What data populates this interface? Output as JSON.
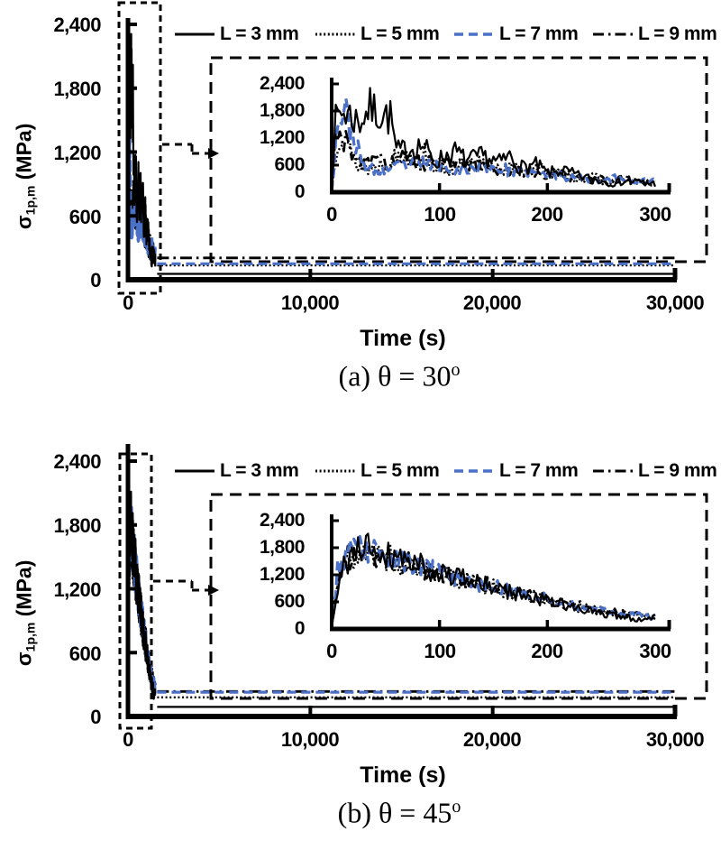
{
  "figure": {
    "background": "#ffffff",
    "text_color": "#000000"
  },
  "colors": {
    "black": "#000000",
    "blue": "#4a70c8"
  },
  "chart_data": [
    {
      "type": "line",
      "caption": "(a) θ = 30°",
      "caption_prefix": "(a) θ = 30",
      "caption_sup": "o",
      "xlabel": "Time (s)",
      "ylabel": "σ1p,m (MPa)",
      "ylabel_parts": {
        "sigma": "σ",
        "sub": "1p,m",
        "rest": " (MPa)"
      },
      "legend_position": "top",
      "main_axis": {
        "xlim": [
          0,
          30000
        ],
        "ylim": [
          0,
          2400
        ],
        "grid": false,
        "xticks": [
          0,
          10000,
          20000,
          30000
        ],
        "xtick_labels": [
          "0",
          "10,000",
          "20,000",
          "30,000"
        ],
        "yticks": [
          2400,
          1800,
          1200,
          600,
          0
        ],
        "ytick_labels": [
          "2,400",
          "1,800",
          "1,200",
          "600",
          "0"
        ]
      },
      "inset_axis": {
        "xlim": [
          0,
          300
        ],
        "ylim": [
          0,
          2400
        ],
        "grid": false,
        "xticks": [
          0,
          100,
          200,
          300
        ],
        "xtick_labels": [
          "0",
          "100",
          "200",
          "300"
        ],
        "yticks": [
          2400,
          1800,
          1200,
          600,
          0
        ],
        "ytick_labels": [
          "2,400",
          "1,800",
          "1,200",
          "600",
          "0"
        ]
      },
      "burst_duration_s": 1500,
      "series": [
        {
          "name": "L = 3 mm",
          "style": "solid",
          "color": "#000000",
          "steady_MPa": 55,
          "seed": 7,
          "noise": 0.45,
          "control_points": [
            [
              0,
              40
            ],
            [
              3,
              1500
            ],
            [
              8,
              1800
            ],
            [
              15,
              1750
            ],
            [
              25,
              1550
            ],
            [
              35,
              1850
            ],
            [
              45,
              1750
            ],
            [
              55,
              1650
            ],
            [
              60,
              900
            ],
            [
              70,
              950
            ],
            [
              85,
              1050
            ],
            [
              95,
              650
            ],
            [
              105,
              800
            ],
            [
              115,
              900
            ],
            [
              125,
              700
            ],
            [
              140,
              800
            ],
            [
              155,
              650
            ],
            [
              165,
              800
            ],
            [
              175,
              550
            ],
            [
              190,
              600
            ],
            [
              200,
              420
            ],
            [
              215,
              480
            ],
            [
              230,
              350
            ],
            [
              245,
              280
            ],
            [
              260,
              200
            ],
            [
              275,
              260
            ],
            [
              290,
              210
            ],
            [
              300,
              190
            ]
          ]
        },
        {
          "name": "L = 5 mm",
          "style": "dotted",
          "color": "#000000",
          "steady_MPa": 135,
          "seed": 13,
          "noise": 0.5,
          "control_points": [
            [
              0,
              30
            ],
            [
              5,
              1200
            ],
            [
              10,
              1500
            ],
            [
              18,
              800
            ],
            [
              28,
              520
            ],
            [
              40,
              560
            ],
            [
              55,
              720
            ],
            [
              70,
              820
            ],
            [
              85,
              880
            ],
            [
              95,
              600
            ],
            [
              110,
              520
            ],
            [
              125,
              580
            ],
            [
              140,
              620
            ],
            [
              155,
              560
            ],
            [
              170,
              480
            ],
            [
              185,
              540
            ],
            [
              200,
              430
            ],
            [
              215,
              380
            ],
            [
              230,
              320
            ],
            [
              245,
              300
            ],
            [
              260,
              270
            ],
            [
              280,
              230
            ],
            [
              300,
              200
            ]
          ]
        },
        {
          "name": "L = 7 mm",
          "style": "dashed",
          "color": "#4a70c8",
          "steady_MPa": 150,
          "seed": 23,
          "noise": 0.4,
          "control_points": [
            [
              0,
              30
            ],
            [
              6,
              1700
            ],
            [
              12,
              1780
            ],
            [
              20,
              1300
            ],
            [
              28,
              600
            ],
            [
              40,
              460
            ],
            [
              55,
              520
            ],
            [
              70,
              600
            ],
            [
              85,
              640
            ],
            [
              100,
              580
            ],
            [
              115,
              480
            ],
            [
              130,
              520
            ],
            [
              145,
              540
            ],
            [
              160,
              500
            ],
            [
              175,
              440
            ],
            [
              190,
              420
            ],
            [
              205,
              390
            ],
            [
              220,
              330
            ],
            [
              235,
              300
            ],
            [
              250,
              290
            ],
            [
              265,
              310
            ],
            [
              280,
              270
            ],
            [
              300,
              240
            ]
          ]
        },
        {
          "name": "L = 9 mm",
          "style": "dashdot",
          "color": "#000000",
          "steady_MPa": 205,
          "seed": 31,
          "noise": 0.45,
          "control_points": [
            [
              0,
              35
            ],
            [
              5,
              1550
            ],
            [
              11,
              1200
            ],
            [
              20,
              750
            ],
            [
              32,
              620
            ],
            [
              45,
              680
            ],
            [
              60,
              720
            ],
            [
              75,
              700
            ],
            [
              90,
              640
            ],
            [
              105,
              580
            ],
            [
              120,
              600
            ],
            [
              135,
              560
            ],
            [
              150,
              520
            ],
            [
              165,
              470
            ],
            [
              180,
              460
            ],
            [
              195,
              420
            ],
            [
              210,
              380
            ],
            [
              225,
              350
            ],
            [
              240,
              300
            ],
            [
              255,
              280
            ],
            [
              270,
              260
            ],
            [
              285,
              240
            ],
            [
              300,
              220
            ]
          ]
        }
      ]
    },
    {
      "type": "line",
      "caption": "(b) θ = 45°",
      "caption_prefix": "(b) θ = 45",
      "caption_sup": "o",
      "xlabel": "Time (s)",
      "ylabel": "σ1p,m (MPa)",
      "ylabel_parts": {
        "sigma": "σ",
        "sub": "1p,m",
        "rest": " (MPa)"
      },
      "legend_position": "top",
      "main_axis": {
        "xlim": [
          0,
          30000
        ],
        "ylim": [
          0,
          2400
        ],
        "grid": false,
        "xticks": [
          0,
          10000,
          20000,
          30000
        ],
        "xtick_labels": [
          "0",
          "10,000",
          "20,000",
          "30,000"
        ],
        "yticks": [
          2400,
          1800,
          1200,
          600,
          0
        ],
        "ytick_labels": [
          "2,400",
          "1,800",
          "1,200",
          "600",
          "0"
        ]
      },
      "inset_axis": {
        "xlim": [
          0,
          300
        ],
        "ylim": [
          0,
          2400
        ],
        "grid": false,
        "xticks": [
          0,
          100,
          200,
          300
        ],
        "xtick_labels": [
          "0",
          "100",
          "200",
          "300"
        ],
        "yticks": [
          2400,
          1800,
          1200,
          600,
          0
        ],
        "ytick_labels": [
          "2,400",
          "1,800",
          "1,200",
          "600",
          "0"
        ]
      },
      "burst_duration_s": 1500,
      "series": [
        {
          "name": "L = 3 mm",
          "style": "solid",
          "color": "#000000",
          "steady_MPa": 90,
          "seed": 41,
          "noise": 0.35,
          "control_points": [
            [
              0,
              60
            ],
            [
              5,
              700
            ],
            [
              12,
              1450
            ],
            [
              22,
              1650
            ],
            [
              32,
              1900
            ],
            [
              42,
              1750
            ],
            [
              55,
              1650
            ],
            [
              70,
              1550
            ],
            [
              85,
              1420
            ],
            [
              100,
              1250
            ],
            [
              115,
              1150
            ],
            [
              130,
              1050
            ],
            [
              145,
              950
            ],
            [
              160,
              850
            ],
            [
              175,
              760
            ],
            [
              190,
              680
            ],
            [
              205,
              600
            ],
            [
              220,
              500
            ],
            [
              235,
              420
            ],
            [
              250,
              340
            ],
            [
              265,
              280
            ],
            [
              280,
              240
            ],
            [
              300,
              200
            ]
          ]
        },
        {
          "name": "L = 5 mm",
          "style": "dotted",
          "color": "#000000",
          "steady_MPa": 180,
          "seed": 47,
          "noise": 0.32,
          "control_points": [
            [
              0,
              50
            ],
            [
              7,
              1250
            ],
            [
              18,
              1600
            ],
            [
              30,
              1680
            ],
            [
              45,
              1600
            ],
            [
              60,
              1520
            ],
            [
              75,
              1430
            ],
            [
              90,
              1320
            ],
            [
              105,
              1200
            ],
            [
              120,
              1100
            ],
            [
              135,
              1000
            ],
            [
              150,
              920
            ],
            [
              165,
              830
            ],
            [
              180,
              760
            ],
            [
              195,
              680
            ],
            [
              210,
              580
            ],
            [
              225,
              500
            ],
            [
              240,
              430
            ],
            [
              255,
              380
            ],
            [
              270,
              320
            ],
            [
              285,
              280
            ],
            [
              300,
              240
            ]
          ]
        },
        {
          "name": "L = 7 mm",
          "style": "dashed",
          "color": "#4a70c8",
          "steady_MPa": 228,
          "seed": 53,
          "noise": 0.3,
          "control_points": [
            [
              0,
              50
            ],
            [
              6,
              1400
            ],
            [
              16,
              1700
            ],
            [
              28,
              1760
            ],
            [
              42,
              1680
            ],
            [
              58,
              1560
            ],
            [
              74,
              1440
            ],
            [
              90,
              1330
            ],
            [
              106,
              1220
            ],
            [
              122,
              1120
            ],
            [
              138,
              1000
            ],
            [
              154,
              900
            ],
            [
              170,
              820
            ],
            [
              186,
              740
            ],
            [
              202,
              650
            ],
            [
              218,
              560
            ],
            [
              234,
              480
            ],
            [
              250,
              420
            ],
            [
              266,
              360
            ],
            [
              282,
              300
            ],
            [
              300,
              250
            ]
          ]
        },
        {
          "name": "L = 9 mm",
          "style": "dashdot",
          "color": "#000000",
          "steady_MPa": 235,
          "seed": 59,
          "noise": 0.32,
          "control_points": [
            [
              0,
              50
            ],
            [
              7,
              1350
            ],
            [
              18,
              1640
            ],
            [
              32,
              1700
            ],
            [
              46,
              1620
            ],
            [
              62,
              1500
            ],
            [
              78,
              1400
            ],
            [
              94,
              1300
            ],
            [
              110,
              1180
            ],
            [
              126,
              1080
            ],
            [
              142,
              980
            ],
            [
              158,
              880
            ],
            [
              174,
              800
            ],
            [
              190,
              720
            ],
            [
              206,
              620
            ],
            [
              222,
              540
            ],
            [
              238,
              470
            ],
            [
              254,
              410
            ],
            [
              270,
              350
            ],
            [
              286,
              300
            ],
            [
              300,
              260
            ]
          ]
        }
      ]
    }
  ]
}
